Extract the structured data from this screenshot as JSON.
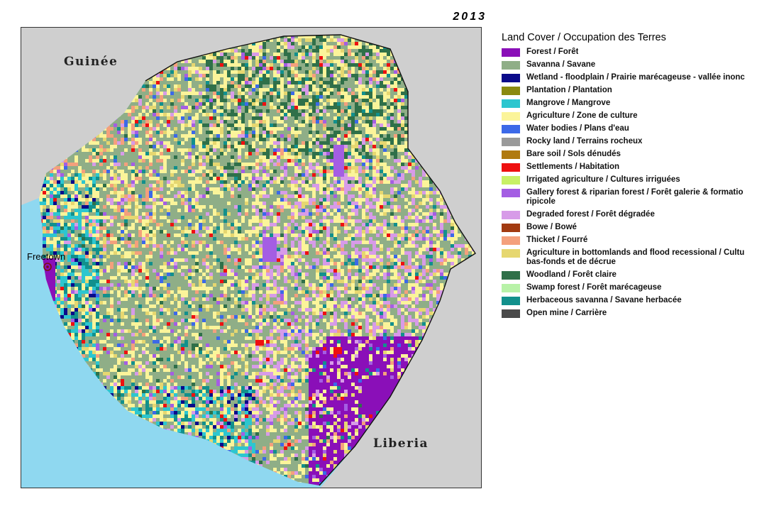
{
  "title_year": "2013",
  "map": {
    "country_labels": {
      "north": "Guinée",
      "southeast": "Liberia"
    },
    "city_label": "Freetown",
    "colors": {
      "neighbor_land": "#cfcfcf",
      "ocean": "#8fd8f0",
      "border": "#111111"
    }
  },
  "legend": {
    "title": "Land Cover /  Occupation des Terres",
    "items": [
      {
        "label": "Forest / Forêt",
        "color": "#8a0fb8"
      },
      {
        "label": "Savanna / Savane",
        "color": "#8fae87"
      },
      {
        "label": "Wetland - floodplain / Prairie marécageuse - vallée inonc",
        "color": "#0a0a8a"
      },
      {
        "label": "Plantation / Plantation",
        "color": "#8a8a10"
      },
      {
        "label": "Mangrove / Mangrove",
        "color": "#2dc6cf"
      },
      {
        "label": "Agriculture / Zone de culture",
        "color": "#fbf49a"
      },
      {
        "label": "Water bodies / Plans d'eau",
        "color": "#3c69e8"
      },
      {
        "label": "Rocky land / Terrains rocheux",
        "color": "#9a9a9a"
      },
      {
        "label": "Bare soil / Sols dénudés",
        "color": "#b07a10"
      },
      {
        "label": "Settlements / Habitation",
        "color": "#ee1010"
      },
      {
        "label": "Irrigated agriculture / Cultures irriguées",
        "color": "#c8f067"
      },
      {
        "label": "Gallery forest & riparian forest / Forêt galerie & formatio\nripicole",
        "color": "#a45ee3"
      },
      {
        "label": "Degraded forest / Forêt dégradée",
        "color": "#d79be8"
      },
      {
        "label": "Bowe / Bowé",
        "color": "#a23a10"
      },
      {
        "label": "Thicket / Fourré",
        "color": "#f4a07c"
      },
      {
        "label": "Agriculture in bottomlands and flood recessional / Cultu\nbas-fonds et de décrue",
        "color": "#e6d770"
      },
      {
        "label": "Woodland / Forêt claire",
        "color": "#2f7049"
      },
      {
        "label": "Swamp forest / Forêt marécageuse",
        "color": "#b8f2a8"
      },
      {
        "label": "Herbaceous savanna / Savane herbacée",
        "color": "#12908c"
      },
      {
        "label": "Open mine / Carrière",
        "color": "#4a4a4a"
      }
    ]
  }
}
